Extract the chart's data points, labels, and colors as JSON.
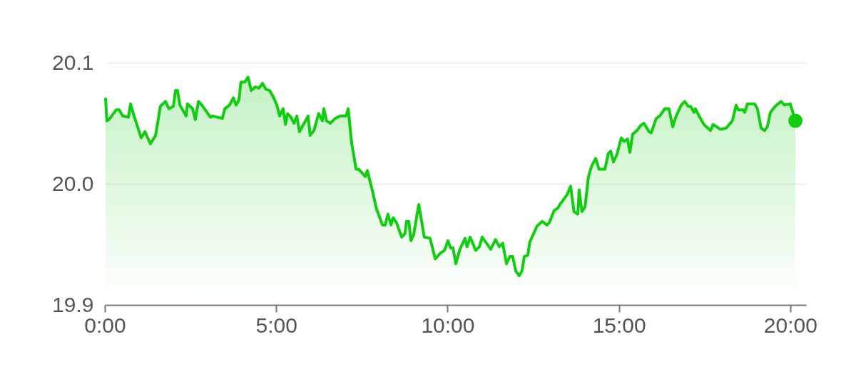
{
  "chart_data": {
    "type": "area",
    "xlim": [
      0,
      20.46
    ],
    "ylim": [
      19.9,
      20.1
    ],
    "xticks": [
      {
        "value": 0,
        "label": "0:00"
      },
      {
        "value": 5,
        "label": "5:00"
      },
      {
        "value": 10,
        "label": "10:00"
      },
      {
        "value": 15,
        "label": "15:00"
      },
      {
        "value": 20,
        "label": "20:00"
      }
    ],
    "yticks": [
      19.9,
      {
        "value": 20,
        "label": "20.0"
      },
      20.1
    ],
    "grid": "y",
    "marker": "none",
    "line_style": "solid",
    "series": [
      {
        "color": "#11cc11",
        "x": [
          0.02,
          0.06,
          0.12,
          0.33,
          0.42,
          0.52,
          0.69,
          0.75,
          0.83,
          1.06,
          1.17,
          1.33,
          1.48,
          1.62,
          1.77,
          1.87,
          2.0,
          2.06,
          2.12,
          2.19,
          2.31,
          2.37,
          2.41,
          2.56,
          2.64,
          2.73,
          2.83,
          3.08,
          3.14,
          3.43,
          3.5,
          3.64,
          3.75,
          3.83,
          3.91,
          3.97,
          4.08,
          4.18,
          4.27,
          4.39,
          4.5,
          4.6,
          4.7,
          4.81,
          4.91,
          5.02,
          5.1,
          5.2,
          5.27,
          5.33,
          5.43,
          5.52,
          5.6,
          5.68,
          5.93,
          5.99,
          6.1,
          6.24,
          6.35,
          6.39,
          6.47,
          6.58,
          6.72,
          6.87,
          7.04,
          7.1,
          7.2,
          7.33,
          7.41,
          7.6,
          7.66,
          7.8,
          7.93,
          8.1,
          8.18,
          8.26,
          8.35,
          8.41,
          8.51,
          8.66,
          8.76,
          8.8,
          8.87,
          8.93,
          9.01,
          9.16,
          9.32,
          9.49,
          9.64,
          9.8,
          9.91,
          10.01,
          10.09,
          10.16,
          10.24,
          10.36,
          10.51,
          10.57,
          10.66,
          10.82,
          10.93,
          11.01,
          11.26,
          11.4,
          11.51,
          11.61,
          11.72,
          11.82,
          11.9,
          11.99,
          12.09,
          12.17,
          12.24,
          12.34,
          12.4,
          12.61,
          12.76,
          12.9,
          12.97,
          13.11,
          13.22,
          13.28,
          13.49,
          13.59,
          13.69,
          13.8,
          13.84,
          13.92,
          14.01,
          14.11,
          14.21,
          14.32,
          14.42,
          14.59,
          14.69,
          14.76,
          14.84,
          14.94,
          15.07,
          15.15,
          15.25,
          15.32,
          15.4,
          15.53,
          15.63,
          15.73,
          15.88,
          15.94,
          16.09,
          16.19,
          16.34,
          16.46,
          16.57,
          16.67,
          16.82,
          16.92,
          17.02,
          17.09,
          17.19,
          17.23,
          17.34,
          17.48,
          17.67,
          17.75,
          17.96,
          18.13,
          18.31,
          18.42,
          18.48,
          18.63,
          18.67,
          18.75,
          18.96,
          19.04,
          19.15,
          19.25,
          19.33,
          19.42,
          19.56,
          19.73,
          19.83,
          20.0,
          20.15
        ],
        "values": [
          20.071,
          20.052,
          20.053,
          20.061,
          20.061,
          20.056,
          20.055,
          20.066,
          20.058,
          20.038,
          20.043,
          20.033,
          20.04,
          20.064,
          20.068,
          20.062,
          20.064,
          20.077,
          20.077,
          20.065,
          20.059,
          20.056,
          20.066,
          20.062,
          20.053,
          20.068,
          20.065,
          20.055,
          20.056,
          20.054,
          20.062,
          20.065,
          20.071,
          20.065,
          20.069,
          20.084,
          20.084,
          20.088,
          20.077,
          20.08,
          20.079,
          20.083,
          20.078,
          20.077,
          20.072,
          20.065,
          20.056,
          20.062,
          20.049,
          20.058,
          20.055,
          20.05,
          20.056,
          20.043,
          20.056,
          20.04,
          20.044,
          20.058,
          20.052,
          20.062,
          20.052,
          20.05,
          20.054,
          20.056,
          20.056,
          20.062,
          20.034,
          20.012,
          20.012,
          20.006,
          20.011,
          19.995,
          19.979,
          19.966,
          19.966,
          19.975,
          19.966,
          19.972,
          19.968,
          19.956,
          19.959,
          19.969,
          19.969,
          19.953,
          19.958,
          19.983,
          19.956,
          19.955,
          19.938,
          19.943,
          19.945,
          19.953,
          19.947,
          19.947,
          19.934,
          19.946,
          19.955,
          19.948,
          19.956,
          19.945,
          19.948,
          19.956,
          19.946,
          19.954,
          19.948,
          19.951,
          19.934,
          19.94,
          19.94,
          19.928,
          19.924,
          19.928,
          19.94,
          19.941,
          19.952,
          19.965,
          19.969,
          19.966,
          19.968,
          19.978,
          19.98,
          19.983,
          19.991,
          19.998,
          19.977,
          19.975,
          19.995,
          19.977,
          19.981,
          20.006,
          20.015,
          20.021,
          20.012,
          20.012,
          20.025,
          20.027,
          20.018,
          20.024,
          20.038,
          20.035,
          20.037,
          20.026,
          20.041,
          20.044,
          20.048,
          20.05,
          20.043,
          20.042,
          20.054,
          20.056,
          20.062,
          20.062,
          20.047,
          20.056,
          20.065,
          20.068,
          20.064,
          20.064,
          20.059,
          20.062,
          20.056,
          20.049,
          20.044,
          20.049,
          20.045,
          20.046,
          20.052,
          20.065,
          20.061,
          20.061,
          20.059,
          20.066,
          20.066,
          20.062,
          20.046,
          20.044,
          20.047,
          20.059,
          20.064,
          20.068,
          20.065,
          20.066,
          20.052
        ]
      },
      {
        "type": "scatter",
        "marker": "circle",
        "color": "#11cc11",
        "x": [
          20.15
        ],
        "values": [
          20.052
        ]
      }
    ]
  }
}
